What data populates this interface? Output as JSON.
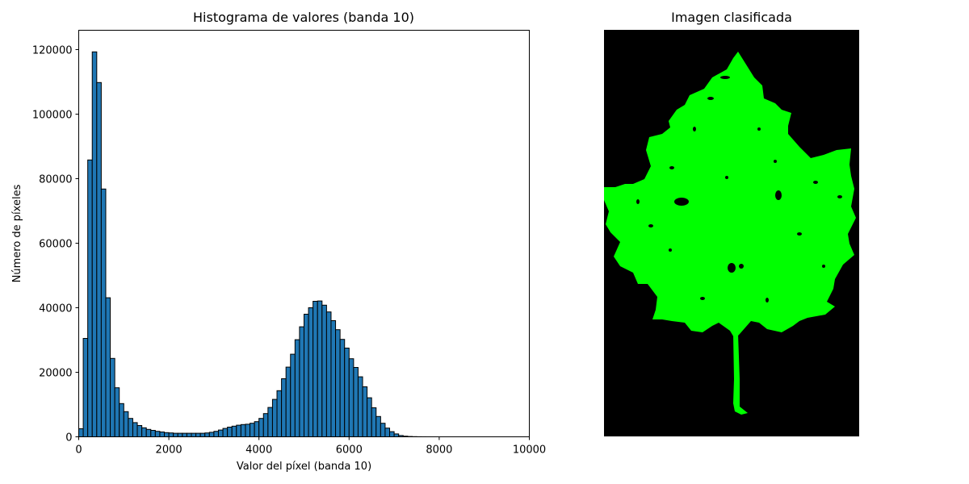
{
  "chart_data": [
    {
      "type": "bar",
      "title": "Histograma de valores (banda 10)",
      "xlabel": "Valor del píxel (banda 10)",
      "ylabel": "Número de píxeles",
      "xlim": [
        0,
        10000
      ],
      "ylim": [
        0,
        126000
      ],
      "xticks": [
        0,
        2000,
        4000,
        6000,
        8000,
        10000
      ],
      "yticks": [
        0,
        20000,
        40000,
        60000,
        80000,
        100000,
        120000
      ],
      "bin_width": 100,
      "bar_color": "#1f77b4",
      "edge_color": "#000000",
      "grid": false,
      "bins_start": [
        0,
        100,
        200,
        300,
        400,
        500,
        600,
        700,
        800,
        900,
        1000,
        1100,
        1200,
        1300,
        1400,
        1500,
        1600,
        1700,
        1800,
        1900,
        2000,
        2100,
        2200,
        2300,
        2400,
        2500,
        2600,
        2700,
        2800,
        2900,
        3000,
        3100,
        3200,
        3300,
        3400,
        3500,
        3600,
        3700,
        3800,
        3900,
        4000,
        4100,
        4200,
        4300,
        4400,
        4500,
        4600,
        4700,
        4800,
        4900,
        5000,
        5100,
        5200,
        5300,
        5400,
        5500,
        5600,
        5700,
        5800,
        5900,
        6000,
        6100,
        6200,
        6300,
        6400,
        6500,
        6600,
        6700,
        6800,
        6900,
        7000,
        7100,
        7200,
        7300,
        7400,
        7500,
        7600,
        7700
      ],
      "values": [
        2500,
        30500,
        85800,
        119300,
        109800,
        76800,
        43100,
        24300,
        15200,
        10300,
        7800,
        5700,
        4400,
        3500,
        2800,
        2300,
        2000,
        1700,
        1500,
        1300,
        1200,
        1100,
        1100,
        1100,
        1100,
        1100,
        1100,
        1100,
        1200,
        1400,
        1700,
        2100,
        2600,
        3000,
        3300,
        3600,
        3800,
        3900,
        4200,
        4700,
        5700,
        7200,
        9100,
        11600,
        14300,
        18000,
        21600,
        25600,
        30100,
        34100,
        38000,
        40000,
        42000,
        42100,
        40800,
        38700,
        36000,
        33200,
        30200,
        27500,
        24200,
        21500,
        18600,
        15500,
        12100,
        9000,
        6300,
        4200,
        2700,
        1600,
        900,
        400,
        200,
        100,
        50,
        20,
        10,
        5
      ]
    },
    {
      "type": "image",
      "title": "Imagen clasificada",
      "background_color": "#000000",
      "class_color": "#00ff00"
    }
  ]
}
